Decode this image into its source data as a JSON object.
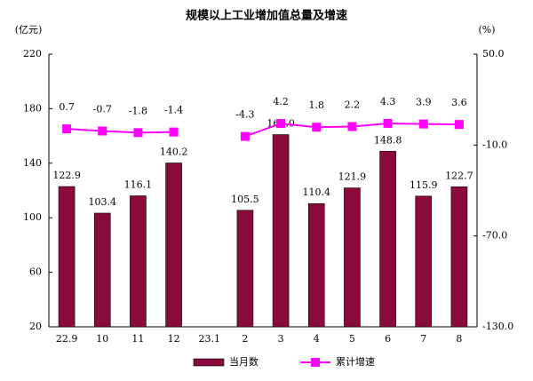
{
  "chart_data": {
    "type": "bar-line",
    "title": "规模以上工业增加值总量及增速",
    "y_label": "(亿元)",
    "y2_label": "(%)",
    "categories": [
      "22.9",
      "10",
      "11",
      "12",
      "23.1",
      "2",
      "3",
      "4",
      "5",
      "6",
      "7",
      "8"
    ],
    "series": [
      {
        "name": "当月数",
        "color": "#8b0a3c",
        "type": "bar",
        "values": [
          122.9,
          103.4,
          116.1,
          140.2,
          null,
          105.5,
          161.0,
          110.4,
          121.9,
          148.8,
          115.9,
          122.7
        ],
        "value_labels": [
          "122.9",
          "103.4",
          "116.1",
          "140.2",
          null,
          "105.5",
          "161.0",
          "110.4",
          "121.9",
          "148.8",
          "115.9",
          "122.7"
        ]
      },
      {
        "name": "累计增速",
        "color": "#ff00ff",
        "type": "line",
        "axis": "y2",
        "values": [
          0.7,
          -0.7,
          -1.8,
          -1.4,
          null,
          -4.3,
          4.2,
          1.8,
          2.2,
          4.3,
          3.9,
          3.6
        ]
      }
    ],
    "ylim": [
      20,
      220
    ],
    "yticks": [
      20,
      60,
      100,
      140,
      180,
      220
    ],
    "y2lim": [
      -130,
      50
    ],
    "y2ticks": [
      {
        "value": -130,
        "label": "-130.0"
      },
      {
        "value": -70,
        "label": "-70.0"
      },
      {
        "value": -10,
        "label": "-10.0"
      },
      {
        "value": 50,
        "label": "50.0"
      }
    ],
    "legend": "bottom"
  }
}
